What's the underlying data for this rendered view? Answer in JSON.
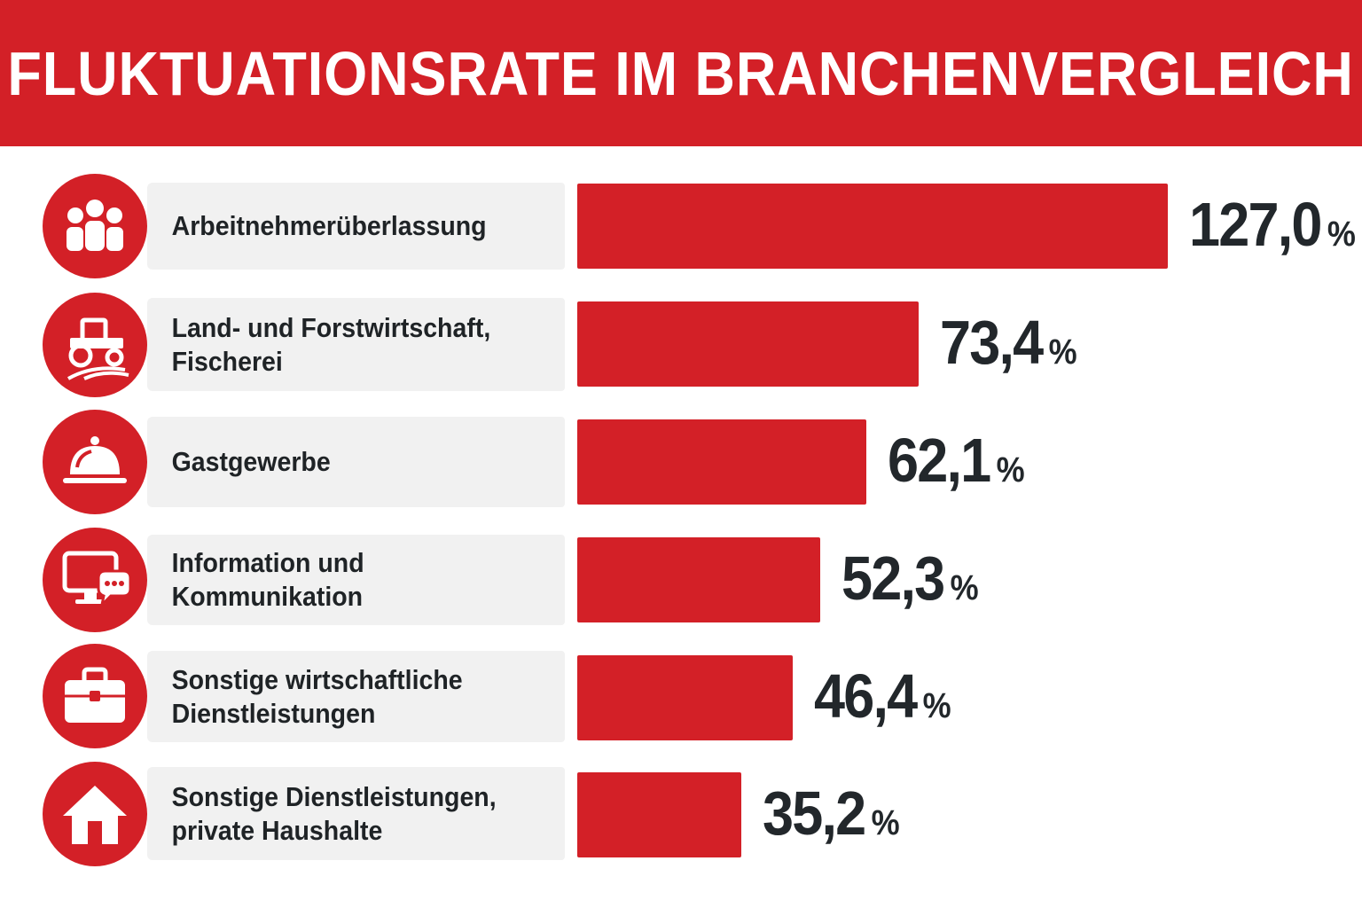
{
  "colors": {
    "accent": "#d32027",
    "label_bg": "#f1f1f1",
    "text": "#22272b"
  },
  "chart_data": {
    "type": "bar",
    "orientation": "horizontal",
    "title": "FLUKTUATIONSRATE IM BRANCHENVERGLEICH",
    "unit": "%",
    "categories": [
      "Arbeitnehmerüberlassung",
      "Land- und Forstwirtschaft,\nFischerei",
      "Gastgewerbe",
      "Information und\nKommunikation",
      "Sonstige wirtschaftliche\nDienstleistungen",
      "Sonstige Dienstleistungen,\nprivate Haushalte"
    ],
    "values": [
      127.0,
      73.4,
      62.1,
      52.3,
      46.4,
      35.2
    ],
    "value_labels": [
      "127,0",
      "73,4",
      "62,1",
      "52,3",
      "46,4",
      "35,2"
    ],
    "icons": [
      "people-group-icon",
      "tractor-icon",
      "cloche-icon",
      "monitor-chat-icon",
      "briefcase-icon",
      "house-icon"
    ],
    "xlim": [
      0,
      127.0
    ]
  }
}
